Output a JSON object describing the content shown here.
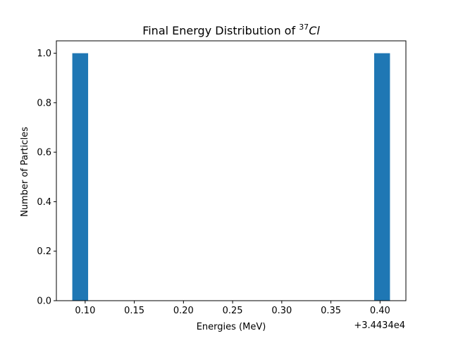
{
  "chart_data": {
    "type": "bar",
    "title": {
      "prefix": "Final Energy Distribution of ",
      "superscript": "37",
      "italic": "Cl"
    },
    "xlabel": "Energies (MeV)",
    "ylabel": "Number of Particles",
    "x_offset_label": "+3.4434e4",
    "x_offset": 34434,
    "xlim": [
      0.0707,
      0.4263
    ],
    "ylim": [
      0,
      1.05
    ],
    "x_ticks": [
      0.1,
      0.15,
      0.2,
      0.25,
      0.3,
      0.35,
      0.4
    ],
    "x_tick_labels": [
      "0.10",
      "0.15",
      "0.20",
      "0.25",
      "0.30",
      "0.35",
      "0.40"
    ],
    "y_ticks": [
      0.0,
      0.2,
      0.4,
      0.6,
      0.8,
      1.0
    ],
    "y_tick_labels": [
      "0.0",
      "0.2",
      "0.4",
      "0.6",
      "0.8",
      "1.0"
    ],
    "bins": [
      {
        "x0": 0.0869,
        "x1": 0.103,
        "count": 1
      },
      {
        "x0": 0.394,
        "x1": 0.4101,
        "count": 1
      }
    ],
    "bar_color": "#1f77b4",
    "grid": false
  }
}
